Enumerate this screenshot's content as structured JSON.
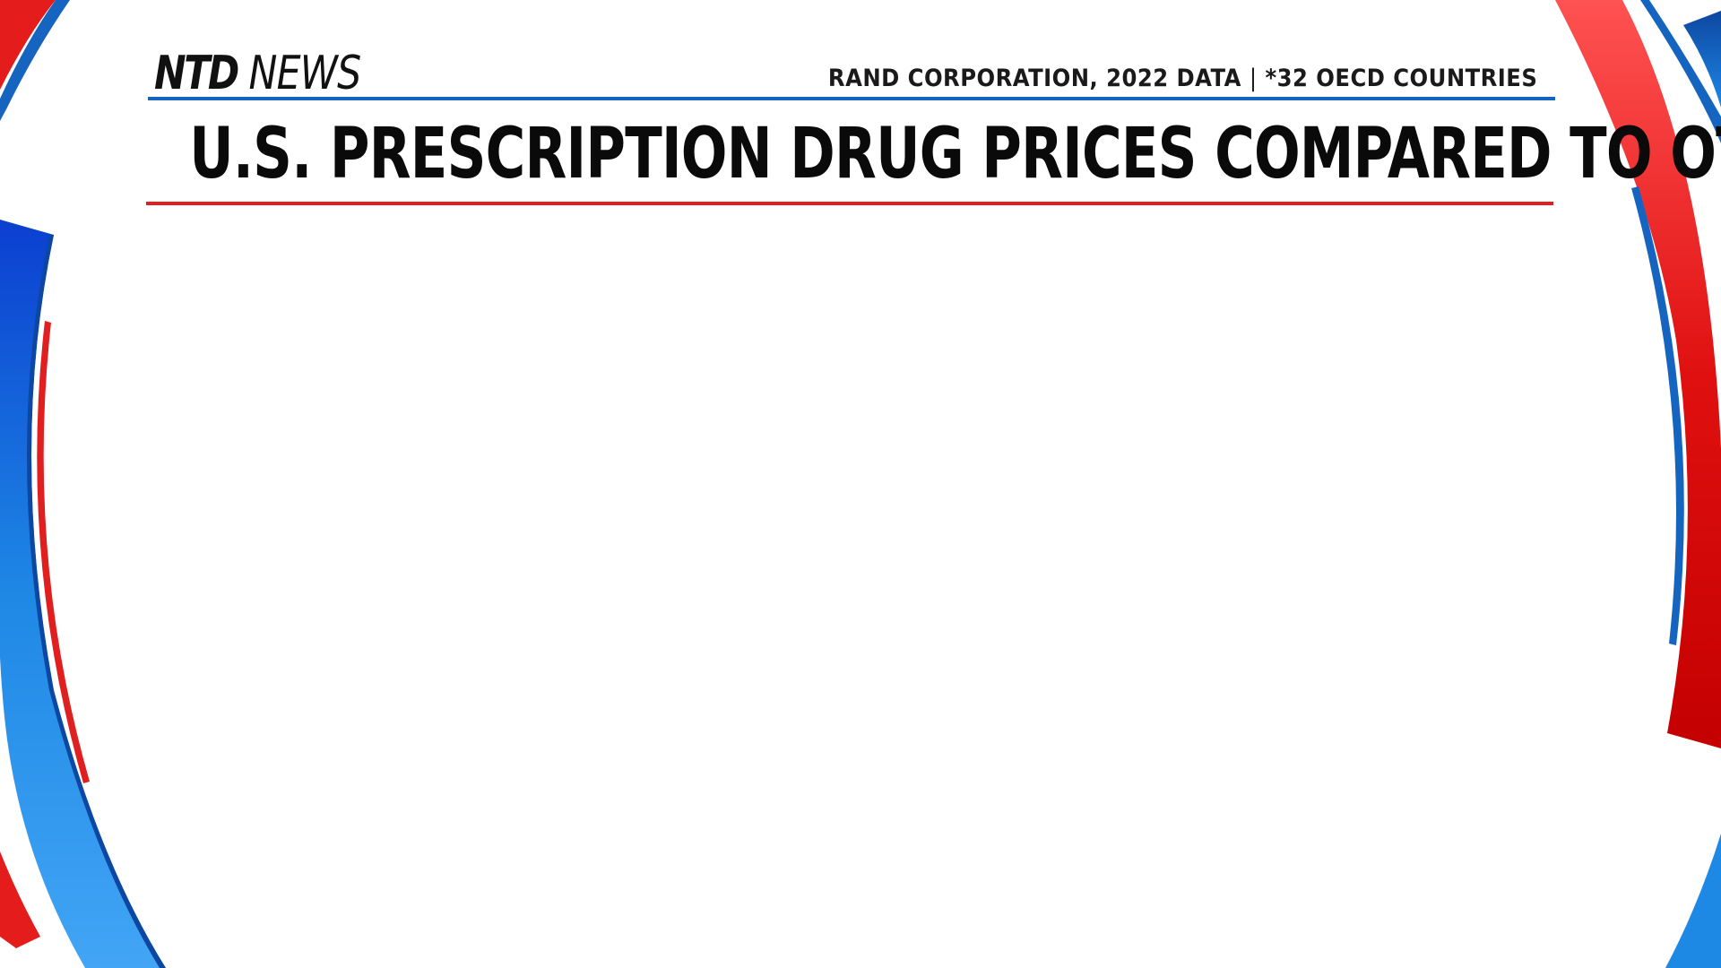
{
  "brand": {
    "logo_bold": "NTD",
    "logo_regular": "NEWS"
  },
  "header": {
    "source": "RAND CORPORATION, 2022 DATA",
    "separator": "|",
    "note": "*32 OECD COUNTRIES"
  },
  "title": "U.S. PRESCRIPTION DRUG PRICES COMPARED TO OTHERS",
  "colors": {
    "accent_blue": "#1565c0",
    "accent_red": "#e02020",
    "background": "#ffffff",
    "text": "#0a0a0a"
  }
}
